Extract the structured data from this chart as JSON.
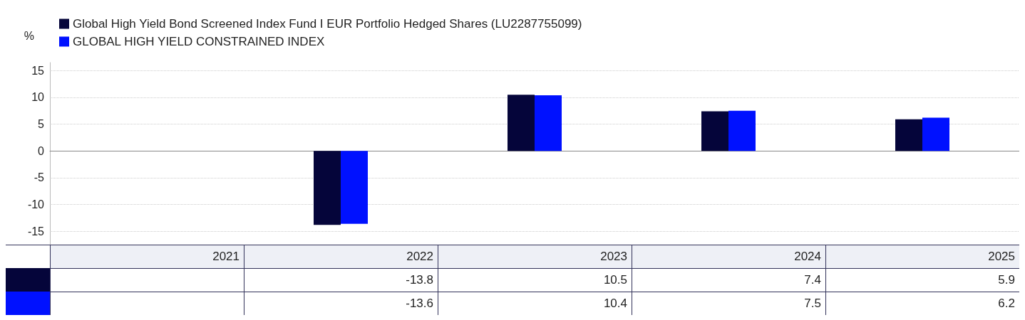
{
  "chart_data": {
    "type": "bar",
    "ylabel": "%",
    "categories": [
      "2021",
      "2022",
      "2023",
      "2024",
      "2025"
    ],
    "series": [
      {
        "name": "Global High Yield Bond Screened Index Fund I EUR Portfolio Hedged Shares (LU2287755099)",
        "color": "#05053a",
        "values": [
          null,
          -13.8,
          10.5,
          7.4,
          5.9
        ]
      },
      {
        "name": "GLOBAL HIGH YIELD CONSTRAINED INDEX",
        "color": "#0011ff",
        "values": [
          null,
          -13.6,
          10.4,
          7.5,
          6.2
        ]
      }
    ],
    "ylim": [
      -17.5,
      16.5
    ],
    "yticks": [
      -15,
      -10,
      -5,
      0,
      5,
      10,
      15
    ],
    "grid": "y",
    "legend": "top left",
    "data_labels": true
  }
}
